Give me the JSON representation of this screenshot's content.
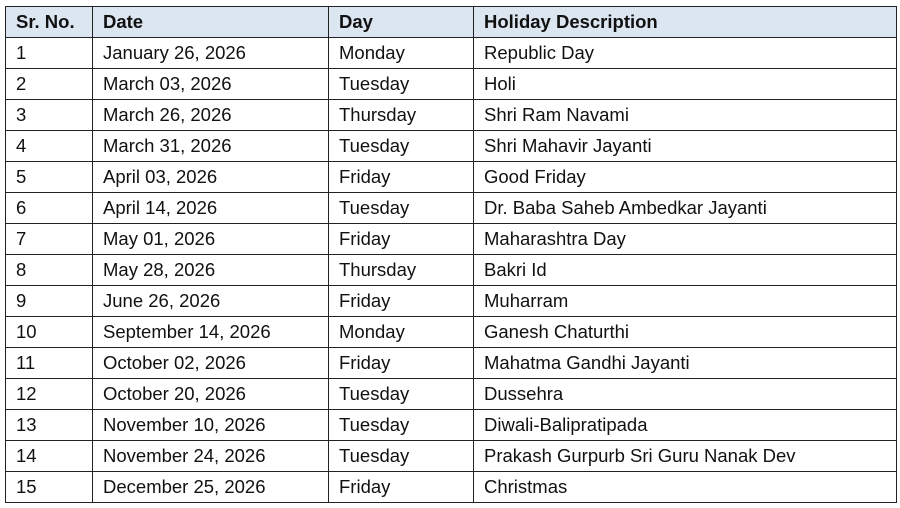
{
  "headers": [
    "Sr. No.",
    "Date",
    "Day",
    "Holiday Description"
  ],
  "rows": [
    [
      "1",
      "January 26, 2026",
      "Monday",
      "Republic Day"
    ],
    [
      "2",
      "March 03, 2026",
      "Tuesday",
      "Holi"
    ],
    [
      "3",
      "March 26, 2026",
      "Thursday",
      "Shri Ram Navami"
    ],
    [
      "4",
      "March 31, 2026",
      "Tuesday",
      "Shri Mahavir Jayanti"
    ],
    [
      "5",
      "April 03, 2026",
      "Friday",
      "Good Friday"
    ],
    [
      "6",
      "April 14, 2026",
      "Tuesday",
      "Dr. Baba Saheb Ambedkar Jayanti"
    ],
    [
      "7",
      "May 01, 2026",
      "Friday",
      "Maharashtra Day"
    ],
    [
      "8",
      "May 28, 2026",
      "Thursday",
      "Bakri Id"
    ],
    [
      "9",
      "June 26, 2026",
      "Friday",
      "Muharram"
    ],
    [
      "10",
      "September 14, 2026",
      "Monday",
      "Ganesh Chaturthi"
    ],
    [
      "11",
      "October 02, 2026",
      "Friday",
      "Mahatma Gandhi Jayanti"
    ],
    [
      "12",
      "October 20, 2026",
      "Tuesday",
      "Dussehra"
    ],
    [
      "13",
      "November 10, 2026",
      "Tuesday",
      "Diwali-Balipratipada"
    ],
    [
      "14",
      "November 24, 2026",
      "Tuesday",
      "Prakash Gurpurb Sri Guru Nanak Dev"
    ],
    [
      "15",
      "December 25, 2026",
      "Friday",
      "Christmas"
    ]
  ],
  "colors": {
    "header_bg": "#dce6f1"
  }
}
